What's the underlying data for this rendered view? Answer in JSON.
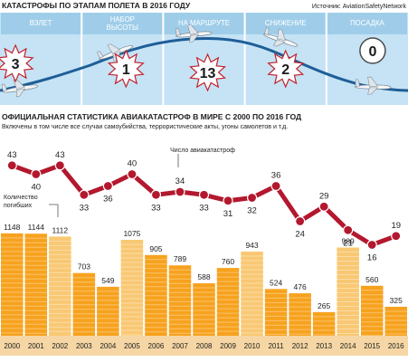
{
  "colors": {
    "sky": "#c5e3f5",
    "sky_dark": "#9fcde9",
    "route_line": "#1f5e97",
    "phase_label": "#ffffff",
    "accident_line": "#b3182e",
    "bar": "#f7a21e",
    "bar_highlight": "#f9c873",
    "year_strip": "#f5d6a4",
    "text": "#222222",
    "burst_fill": "#ffffff",
    "burst_stroke": "#c0232f",
    "circle_stroke": "#4a4a4a"
  },
  "header": {
    "title": "КАТАСТРОФЫ ПО ЭТАПАМ ПОЛЕТА В 2016 ГОДУ",
    "source": "Источник: AviationSafetyNetwork"
  },
  "phases": [
    {
      "label": "ВЗЛЕТ",
      "count": "3",
      "marker": "burst"
    },
    {
      "label": "НАБОР\nВЫСОТЫ",
      "count": "1",
      "marker": "burst"
    },
    {
      "label": "НА МАРШРУТЕ",
      "count": "13",
      "marker": "burst"
    },
    {
      "label": "СНИЖЕНИЕ",
      "count": "2",
      "marker": "burst"
    },
    {
      "label": "ПОСАДКА",
      "count": "0",
      "marker": "circle"
    }
  ],
  "stats": {
    "title": "ОФИЦИАЛЬНАЯ СТАТИСТИКА АВИАКАТАСТРОФ  В МИРЕ С 2000 ПО 2016 ГОД",
    "subtitle": "Включены в том числе все случаи самоубийства, террористические акты, угоны самолетов и т.д."
  },
  "chart_data": {
    "type": "bar+line",
    "categories": [
      "2000",
      "2001",
      "2002",
      "2003",
      "2004",
      "2005",
      "2006",
      "2007",
      "2008",
      "2009",
      "2010",
      "2011",
      "2012",
      "2013",
      "2014",
      "2015",
      "2016"
    ],
    "series": [
      {
        "name": "Число авиакатастроф",
        "type": "line",
        "values": [
          43,
          40,
          43,
          33,
          36,
          40,
          33,
          34,
          33,
          31,
          32,
          36,
          24,
          29,
          21,
          16,
          19
        ]
      },
      {
        "name": "Количество\nпогибших",
        "type": "bar",
        "values": [
          1148,
          1144,
          1112,
          703,
          549,
          1075,
          905,
          789,
          588,
          760,
          943,
          524,
          476,
          265,
          989,
          560,
          325
        ]
      }
    ],
    "highlighted_years": [
      "2002",
      "2005",
      "2010",
      "2014"
    ],
    "line_ylim": [
      10,
      50
    ],
    "bar_ylim": [
      0,
      1250
    ],
    "grid": false
  }
}
